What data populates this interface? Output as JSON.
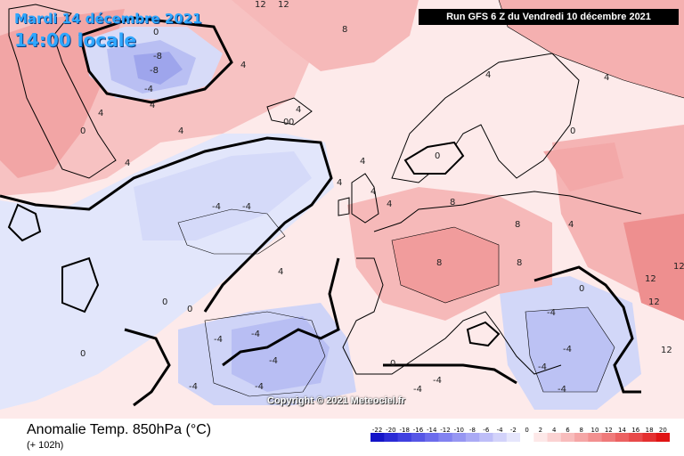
{
  "header": {
    "date_line": "Mardi 14 décembre 2021",
    "time_line": "14:00 locale",
    "run_info": "Run GFS 6 Z du Vendredi 10 décembre 2021"
  },
  "watermark": "Copyright © 2021 Meteociel.fr",
  "footer": {
    "title": "Anomalie Temp. 850hPa (°C)",
    "lead_time": "(+ 102h)"
  },
  "legend": {
    "ticks": [
      "-22",
      "-20",
      "-18",
      "-16",
      "-14",
      "-12",
      "-10",
      "-8",
      "-6",
      "-4",
      "-2",
      "0",
      "2",
      "4",
      "6",
      "8",
      "10",
      "12",
      "14",
      "16",
      "18",
      "20"
    ],
    "colors": [
      "#1414c8",
      "#2b2bd6",
      "#4040e0",
      "#5656e6",
      "#6c6cec",
      "#8282f0",
      "#9696f2",
      "#aaaaf5",
      "#bebef8",
      "#d2d2fa",
      "#e6e6fc",
      "#ffffff",
      "#fde8e8",
      "#fbd2d2",
      "#f8bcbc",
      "#f5a6a6",
      "#f29090",
      "#ef7a7a",
      "#ec6262",
      "#e84a4a",
      "#e43030",
      "#e01414"
    ]
  },
  "map": {
    "colors": {
      "ocean_warm": "#fbd9d9",
      "warm_medium": "#f6b4b4",
      "warm_strong": "#f19a9a",
      "cool_light": "#e2e6fb",
      "cool_medium": "#c7cdf6",
      "cool_strong": "#a7adef",
      "neutral": "#fff4f4",
      "coast": "#000000"
    },
    "contour_labels": [
      "12",
      "12",
      "8",
      "0",
      "-8",
      "-8",
      "-4",
      "4",
      "4",
      "4",
      "4",
      "4",
      "4",
      "4",
      "0",
      "0",
      "4",
      "4",
      "-4",
      "-4",
      "0",
      "0",
      "4",
      "4",
      "-4",
      "-4",
      "-4",
      "-4",
      "-4",
      "0",
      "0",
      "0",
      "4",
      "8",
      "8",
      "8",
      "8",
      "4",
      "0",
      "-4",
      "-4",
      "-4",
      "-4",
      "12",
      "12",
      "12",
      "12",
      "0",
      "-4",
      "-4",
      "0",
      "4"
    ]
  }
}
